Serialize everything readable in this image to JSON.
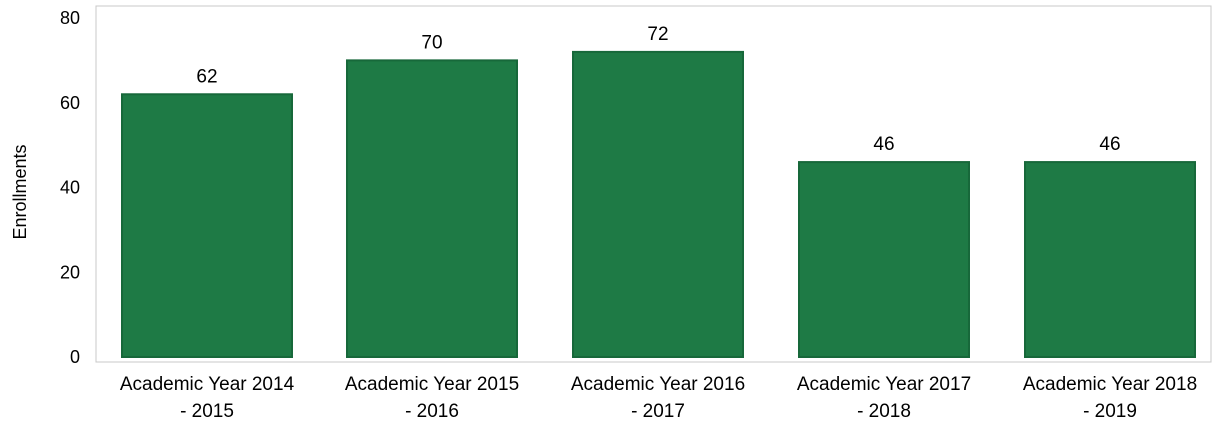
{
  "chart_data": {
    "type": "bar",
    "title": "",
    "xlabel": "",
    "ylabel": "Enrollments",
    "categories": [
      [
        "Academic Year 2014",
        "- 2015"
      ],
      [
        "Academic Year 2015",
        "- 2016"
      ],
      [
        "Academic Year 2016",
        "- 2017"
      ],
      [
        "Academic Year 2017",
        "- 2018"
      ],
      [
        "Academic Year 2018",
        "- 2019"
      ]
    ],
    "values": [
      62,
      70,
      72,
      46,
      46
    ],
    "data_labels": [
      "62",
      "70",
      "72",
      "46",
      "46"
    ],
    "ylim": [
      0,
      80
    ],
    "yticks": [
      0,
      20,
      40,
      60,
      80
    ],
    "grid": false,
    "legend": "none",
    "colors": {
      "bar": "#1e7a45",
      "bar_edge": "#17683a",
      "frame": "#c8c8c8"
    }
  }
}
